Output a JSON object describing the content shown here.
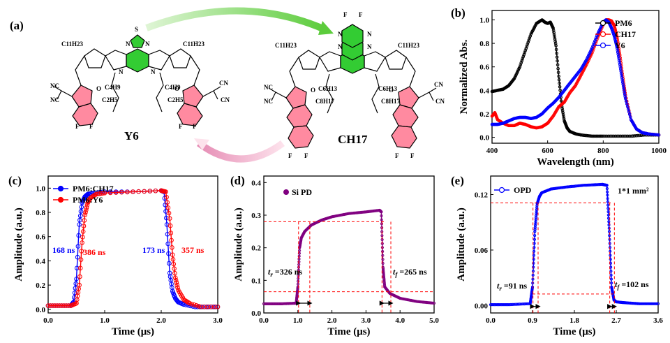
{
  "panels": {
    "a": "(a)",
    "b": "(b)",
    "c": "(c)",
    "d": "(d)",
    "e": "(e)"
  },
  "molecules": {
    "left": {
      "name": "Y6",
      "labels": [
        "C11H23",
        "C11H23",
        "C4H9",
        "C2H5",
        "C4H9",
        "C2H5",
        "NC",
        "NC",
        "CN",
        "CN",
        "O",
        "O",
        "F",
        "F",
        "F",
        "F",
        "N",
        "N",
        "S",
        "N",
        "N"
      ]
    },
    "right": {
      "name": "CH17",
      "labels": [
        "C11H23",
        "C11H23",
        "C6H13",
        "C8H17",
        "C6H13",
        "C8H17",
        "NC",
        "NC",
        "CN",
        "CN",
        "O",
        "O",
        "F",
        "F",
        "F",
        "F",
        "N",
        "N",
        "N",
        "N"
      ]
    }
  },
  "chart_data": [
    {
      "id": "b",
      "type": "line",
      "xlabel": "Wavelength (nm)",
      "ylabel": "Normalized Abs.",
      "xlim": [
        400,
        1000
      ],
      "ylim": [
        -0.05,
        1.08
      ],
      "xticks": [
        400,
        600,
        800,
        1000
      ],
      "yticks": [
        0.0,
        0.2,
        0.4,
        0.6,
        0.8,
        1.0
      ],
      "legend_position": "top-right",
      "series": [
        {
          "name": "PM6",
          "color": "#000000",
          "x": [
            400,
            420,
            440,
            460,
            480,
            500,
            520,
            540,
            560,
            580,
            590,
            600,
            610,
            620,
            630,
            640,
            650,
            660,
            670,
            680,
            700,
            720,
            760,
            800,
            850,
            900,
            950,
            1000
          ],
          "y": [
            0.39,
            0.4,
            0.41,
            0.44,
            0.5,
            0.6,
            0.74,
            0.88,
            0.97,
            1.0,
            0.98,
            0.97,
            0.98,
            0.93,
            0.78,
            0.52,
            0.28,
            0.14,
            0.08,
            0.05,
            0.03,
            0.02,
            0.01,
            0.01,
            0.01,
            0.01,
            0.02,
            0.02
          ]
        },
        {
          "name": "CH17",
          "color": "#ff0000",
          "x": [
            400,
            410,
            420,
            440,
            460,
            480,
            500,
            520,
            540,
            560,
            580,
            600,
            620,
            640,
            660,
            680,
            700,
            720,
            740,
            760,
            780,
            800,
            810,
            820,
            830,
            840,
            850,
            860,
            870,
            880,
            900,
            920,
            940,
            960,
            1000
          ],
          "y": [
            0.18,
            0.21,
            0.15,
            0.12,
            0.1,
            0.1,
            0.12,
            0.11,
            0.09,
            0.08,
            0.09,
            0.12,
            0.18,
            0.26,
            0.3,
            0.38,
            0.44,
            0.53,
            0.62,
            0.72,
            0.85,
            0.96,
            1.0,
            1.0,
            0.99,
            0.95,
            0.85,
            0.7,
            0.52,
            0.36,
            0.15,
            0.07,
            0.04,
            0.03,
            0.02
          ]
        },
        {
          "name": "Y6",
          "color": "#0000ff",
          "x": [
            400,
            420,
            440,
            460,
            480,
            500,
            520,
            540,
            560,
            580,
            600,
            620,
            640,
            660,
            680,
            700,
            720,
            740,
            760,
            780,
            800,
            810,
            820,
            830,
            840,
            850,
            860,
            870,
            880,
            900,
            920,
            940,
            960,
            1000
          ],
          "y": [
            0.11,
            0.11,
            0.12,
            0.14,
            0.16,
            0.17,
            0.17,
            0.16,
            0.17,
            0.2,
            0.25,
            0.29,
            0.34,
            0.4,
            0.46,
            0.52,
            0.58,
            0.66,
            0.76,
            0.88,
            0.98,
            1.0,
            0.98,
            0.93,
            0.86,
            0.76,
            0.62,
            0.47,
            0.33,
            0.15,
            0.07,
            0.04,
            0.03,
            0.02
          ]
        }
      ]
    },
    {
      "id": "c",
      "type": "line",
      "xlabel": "Time (μs)",
      "ylabel": "Amplitude (a.u.)",
      "xlim": [
        0.0,
        3.0
      ],
      "ylim": [
        -0.03,
        1.1
      ],
      "xticks": [
        0.0,
        1.0,
        2.0,
        3.0
      ],
      "xticklabels": [
        "0.0",
        "1.0",
        "2.0",
        "3.0"
      ],
      "yticks": [
        0.0,
        0.2,
        0.4,
        0.6,
        0.8,
        1.0
      ],
      "legend_position": "top-left",
      "series": [
        {
          "name": "PM6:CH17",
          "color": "#0000ff",
          "x": [
            0.0,
            0.2,
            0.4,
            0.45,
            0.5,
            0.55,
            0.6,
            0.65,
            0.7,
            0.8,
            1.0,
            1.5,
            2.0,
            2.05,
            2.1,
            2.15,
            2.2,
            2.25,
            2.3,
            2.4,
            2.6,
            2.8,
            3.0
          ],
          "y": [
            0.03,
            0.03,
            0.03,
            0.06,
            0.25,
            0.7,
            0.88,
            0.93,
            0.95,
            0.96,
            0.97,
            0.97,
            0.98,
            0.97,
            0.7,
            0.3,
            0.15,
            0.09,
            0.06,
            0.04,
            0.02,
            0.02,
            0.02
          ]
        },
        {
          "name": "PM6:Y6",
          "color": "#ff0000",
          "x": [
            0.0,
            0.2,
            0.4,
            0.5,
            0.55,
            0.6,
            0.65,
            0.7,
            0.75,
            0.85,
            1.0,
            1.5,
            2.0,
            2.08,
            2.15,
            2.2,
            2.25,
            2.3,
            2.4,
            2.5,
            2.7,
            3.0
          ],
          "y": [
            0.03,
            0.03,
            0.03,
            0.05,
            0.2,
            0.55,
            0.78,
            0.88,
            0.92,
            0.95,
            0.96,
            0.97,
            0.98,
            0.97,
            0.75,
            0.45,
            0.26,
            0.16,
            0.08,
            0.05,
            0.02,
            0.02
          ]
        }
      ],
      "annotations": [
        {
          "text": "168 ns",
          "color": "#0000ff"
        },
        {
          "text": "386 ns",
          "color": "#ff0000"
        },
        {
          "text": "173 ns",
          "color": "#0000ff"
        },
        {
          "text": "357 ns",
          "color": "#ff0000"
        }
      ]
    },
    {
      "id": "d",
      "type": "line",
      "xlabel": "Time (μs)",
      "ylabel": "Amplitude (a.u.)",
      "xlim": [
        0.0,
        5.0
      ],
      "ylim": [
        0.0,
        0.42
      ],
      "xticks": [
        0.0,
        1.0,
        2.0,
        3.0,
        4.0,
        5.0
      ],
      "xticklabels": [
        "0.0",
        "1.0",
        "2.0",
        "3.0",
        "4.0",
        "5.0"
      ],
      "yticks": [
        0.0,
        0.1,
        0.2,
        0.3,
        0.4
      ],
      "yticklabels": [
        "0.0",
        "0.1",
        "0.2",
        "0.3",
        "0.4"
      ],
      "legend_position": "top-left",
      "series": [
        {
          "name": "Si PD",
          "color": "#800080",
          "x": [
            0.0,
            0.5,
            0.95,
            1.0,
            1.05,
            1.1,
            1.2,
            1.4,
            1.7,
            2.0,
            2.5,
            3.0,
            3.4,
            3.45,
            3.5,
            3.55,
            3.7,
            4.0,
            4.5,
            5.0
          ],
          "y": [
            0.028,
            0.028,
            0.03,
            0.08,
            0.2,
            0.23,
            0.25,
            0.27,
            0.285,
            0.295,
            0.305,
            0.31,
            0.315,
            0.31,
            0.14,
            0.08,
            0.06,
            0.045,
            0.035,
            0.03
          ]
        }
      ],
      "annotations": [
        {
          "text": "t_r =326 ns"
        },
        {
          "text": "t_f =265 ns"
        }
      ]
    },
    {
      "id": "e",
      "type": "line",
      "xlabel": "Time (μs)",
      "ylabel": "Amplitude (a.u.)",
      "xlim": [
        0.0,
        3.6
      ],
      "ylim": [
        -0.008,
        0.14
      ],
      "xticks": [
        0.0,
        0.9,
        1.8,
        2.7,
        3.6
      ],
      "xticklabels": [
        "0.0",
        "0.9",
        "1.8",
        "2.7",
        "3.6"
      ],
      "yticks": [
        0.0,
        0.06,
        0.12
      ],
      "yticklabels": [
        "0.00",
        "0.06",
        "0.12"
      ],
      "legend_position": "top-left",
      "series": [
        {
          "name": "OPD",
          "color": "#0000ff",
          "x": [
            0.0,
            0.4,
            0.85,
            0.9,
            0.95,
            1.0,
            1.05,
            1.1,
            1.3,
            1.6,
            2.0,
            2.4,
            2.5,
            2.55,
            2.6,
            2.65,
            2.7,
            2.9,
            3.2,
            3.6
          ],
          "y": [
            0.001,
            0.001,
            0.002,
            0.02,
            0.08,
            0.11,
            0.118,
            0.122,
            0.126,
            0.128,
            0.13,
            0.131,
            0.13,
            0.08,
            0.02,
            0.006,
            0.004,
            0.003,
            0.002,
            0.002
          ]
        }
      ],
      "annotations": [
        {
          "text": "t_r =91 ns"
        },
        {
          "text": "t_f =102 ns"
        },
        {
          "text": "1*1 mm²"
        }
      ]
    }
  ]
}
